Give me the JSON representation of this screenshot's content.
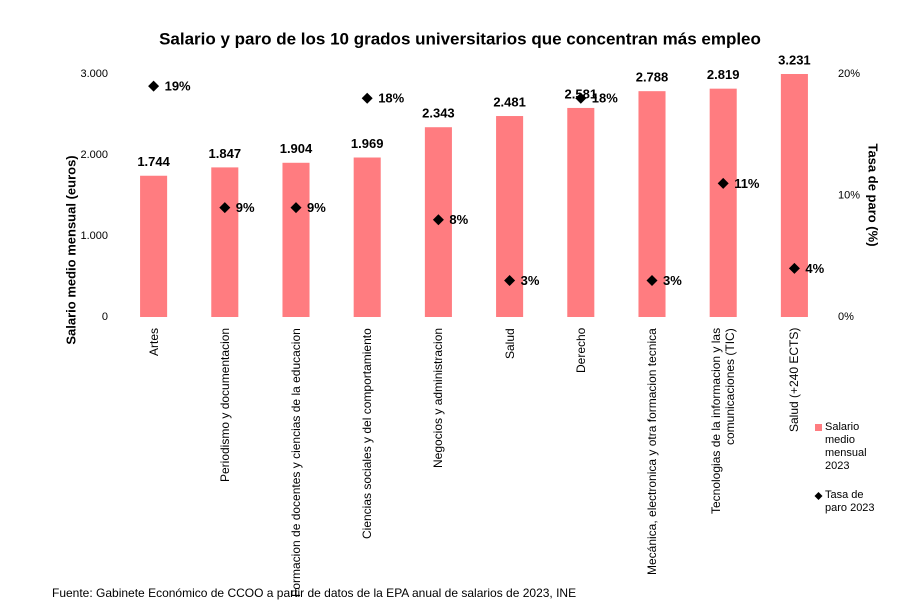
{
  "chart_data": {
    "type": "bar",
    "title": "Salario y paro de los 10 grados universitarios que concentran más empleo",
    "categories": [
      "Artes",
      "Periodismo y documentacion",
      "Formacion de docentes y ciencias de la educacion",
      "Ciencias sociales y del comportamiento",
      "Negocios y administracion",
      "Salud",
      "Derecho",
      "Mecánica, electronica y otra formacion tecnica",
      "Tecnologias de la informacion y las comunicaciones (TIC)",
      "Salud (+240 ECTS)"
    ],
    "series": [
      {
        "name": "Salario medio mensual 2023",
        "color": "#ff7c80",
        "values": [
          1744,
          1847,
          1904,
          1969,
          2343,
          2481,
          2581,
          2788,
          2819,
          3231
        ],
        "value_labels": [
          "1.744",
          "1.847",
          "1.904",
          "1.969",
          "2.343",
          "2.481",
          "2.581",
          "2.788",
          "2.819",
          "3.231"
        ]
      },
      {
        "name": "Tasa de paro 2023",
        "type": "scatter",
        "color": "#000000",
        "axis": "y2",
        "values": [
          19,
          9,
          9,
          18,
          8,
          3,
          18,
          3,
          11,
          4
        ],
        "value_labels": [
          "19%",
          "9%",
          "9%",
          "18%",
          "8%",
          "3%",
          "18%",
          "3%",
          "11%",
          "4%"
        ]
      }
    ],
    "ylabel": "Salario medio mensual (euros)",
    "y2label": "Tasa de paro (%)",
    "ylim": [
      0,
      3000
    ],
    "yticks": [
      0,
      {
        "value": 1000,
        "label": "1.000"
      },
      {
        "value": 2000,
        "label": "2.000"
      },
      {
        "value": 3000,
        "label": "3.000"
      }
    ],
    "y2lim": [
      0,
      20
    ],
    "y2ticks": [
      {
        "value": 0,
        "label": "0%"
      },
      {
        "value": 10,
        "label": "10%"
      },
      {
        "value": 20,
        "label": "20%"
      }
    ],
    "legend": "right",
    "source": "Fuente: Gabinete Económico de CCOO a partir de datos de la EPA anual de salarios de 2023, INE"
  }
}
